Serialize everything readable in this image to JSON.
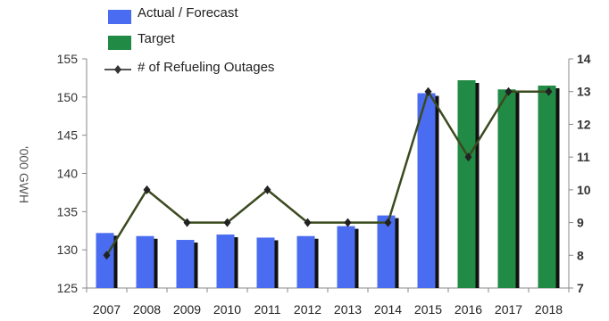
{
  "chart_data": {
    "type": "bar",
    "categories": [
      "2007",
      "2008",
      "2009",
      "2010",
      "2011",
      "2012",
      "2013",
      "2014",
      "2015",
      "2016",
      "2017",
      "2018"
    ],
    "series": [
      {
        "name": "Actual / Forecast",
        "type": "bar",
        "axis": "left",
        "color": "#4a6cf0",
        "values": [
          132.2,
          131.8,
          131.3,
          132.0,
          131.6,
          131.8,
          133.1,
          134.5,
          150.5,
          null,
          null,
          null
        ]
      },
      {
        "name": "Target",
        "type": "bar",
        "axis": "left",
        "color": "#218a45",
        "values": [
          null,
          null,
          null,
          null,
          null,
          null,
          null,
          null,
          null,
          152.2,
          151.0,
          151.5
        ]
      },
      {
        "name": "# of Refueling Outages",
        "type": "line",
        "axis": "right",
        "color": "#3b4a1f",
        "values": [
          8,
          10,
          9,
          9,
          10,
          9,
          9,
          9,
          13,
          11,
          13,
          13
        ]
      }
    ],
    "ylabel": "'000 GWH",
    "ylim": [
      125,
      155
    ],
    "yticks": [
      "125",
      "130",
      "135",
      "140",
      "145",
      "150",
      "155"
    ],
    "y2lim": [
      7,
      14
    ],
    "y2ticks": [
      "7",
      "8",
      "9",
      "10",
      "11",
      "12",
      "13",
      "14"
    ],
    "grid": false,
    "legend_position": "top-left"
  }
}
